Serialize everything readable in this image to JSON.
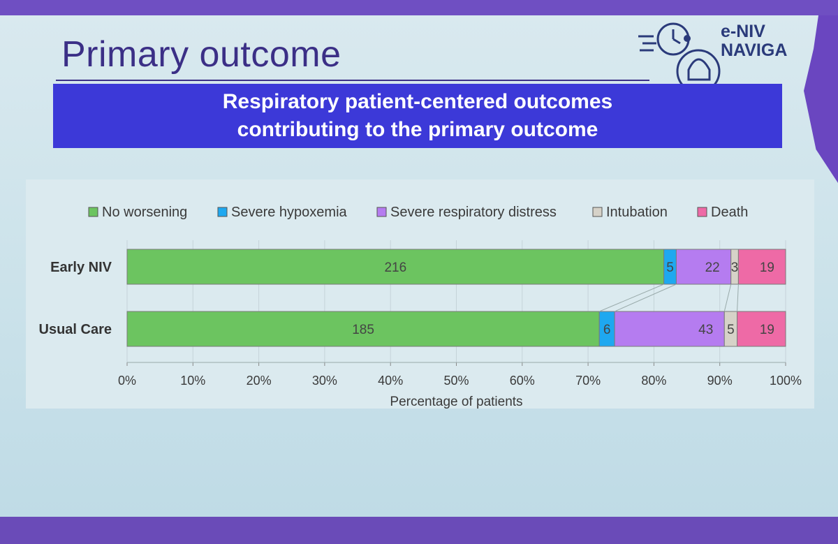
{
  "slide": {
    "title": "Primary outcome",
    "banner_line1": "Respiratory patient-centered outcomes",
    "banner_line2": "contributing to the primary outcome",
    "logo_line1": "e-NIV",
    "logo_line2": "NAVIGA"
  },
  "colors": {
    "no_worsening": "#6cc460",
    "severe_hypoxemia": "#1ea8f0",
    "severe_respiratory_distress": "#b57cf0",
    "intubation": "#d6d2c8",
    "death": "#ee6aa6"
  },
  "chart_data": {
    "type": "bar",
    "orientation": "horizontal",
    "stacked": "percent",
    "categories": [
      "Early NIV",
      "Usual Care"
    ],
    "series": [
      {
        "name": "No worsening",
        "values": [
          216,
          185
        ]
      },
      {
        "name": "Severe hypoxemia",
        "values": [
          5,
          6
        ]
      },
      {
        "name": "Severe respiratory distress",
        "values": [
          22,
          43
        ]
      },
      {
        "name": "Intubation",
        "values": [
          3,
          5
        ]
      },
      {
        "name": "Death",
        "values": [
          19,
          19
        ]
      }
    ],
    "xlabel": "Percentage of patients",
    "xticks": [
      "0%",
      "10%",
      "20%",
      "30%",
      "40%",
      "50%",
      "60%",
      "70%",
      "80%",
      "90%",
      "100%"
    ],
    "xlim": [
      0,
      100
    ],
    "legend": "top"
  }
}
